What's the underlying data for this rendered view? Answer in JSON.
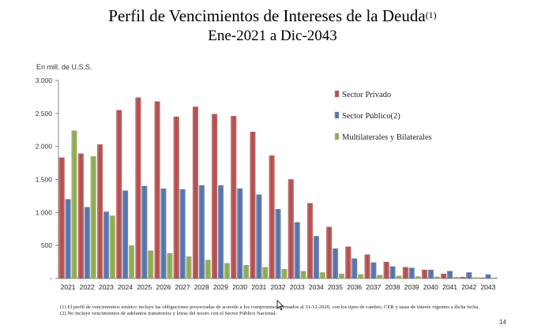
{
  "header": {
    "title": "Perfil de Vencimientos de Intereses de la Deuda",
    "title_sup": "(1)",
    "subtitle": "Ene-2021 a Dic-2043"
  },
  "chart_data": {
    "type": "bar",
    "ylabel": "En mill. de U.S.S.",
    "ylim": [
      0,
      3000
    ],
    "y_ticks": [
      0,
      500,
      1000,
      1500,
      2000,
      2500,
      3000
    ],
    "y_tick_labels": [
      "-",
      "500",
      "1.000",
      "1.500",
      "2.000",
      "2.500",
      "3.000"
    ],
    "grid": false,
    "legend_position": "top-right",
    "categories": [
      "2021",
      "2022",
      "2023",
      "2024",
      "2025",
      "2026",
      "2027",
      "2028",
      "2029",
      "2030",
      "2031",
      "2032",
      "2033",
      "2034",
      "2035",
      "2036",
      "2037",
      "2038",
      "2039",
      "2040",
      "2041",
      "2042",
      "2043"
    ],
    "series": [
      {
        "name": "Sector Privado",
        "color": "#b24a4a",
        "values": [
          1830,
          1890,
          2030,
          2550,
          2740,
          2680,
          2450,
          2600,
          2490,
          2460,
          2220,
          1860,
          1500,
          1140,
          780,
          480,
          360,
          250,
          170,
          130,
          70,
          20,
          10
        ]
      },
      {
        "name": "Sector Público(2)",
        "color": "#4f6fa8",
        "values": [
          1200,
          1080,
          1010,
          1330,
          1400,
          1360,
          1350,
          1410,
          1410,
          1360,
          1270,
          1050,
          850,
          640,
          450,
          300,
          240,
          180,
          160,
          130,
          110,
          90,
          60
        ]
      },
      {
        "name": "Multilaterales y Bilaterales",
        "color": "#8aa84e",
        "values": [
          2240,
          1850,
          950,
          500,
          420,
          380,
          330,
          280,
          230,
          200,
          170,
          140,
          110,
          90,
          70,
          60,
          50,
          40,
          30,
          25,
          20,
          15,
          10
        ]
      }
    ]
  },
  "footnotes": [
    "(1)  El perfil de vencimientos estático incluye las obligaciones proyectadas de acuerdo a los compromisos firmados al 31-12-2020, con los tipos de cambio, CER y tasas de interés vigentes a dicha fecha.",
    "(2)  No incluye vencimientos de adelantos transitorios y letras del tesoro con el Sector Público Nacional."
  ],
  "page_number": "14"
}
